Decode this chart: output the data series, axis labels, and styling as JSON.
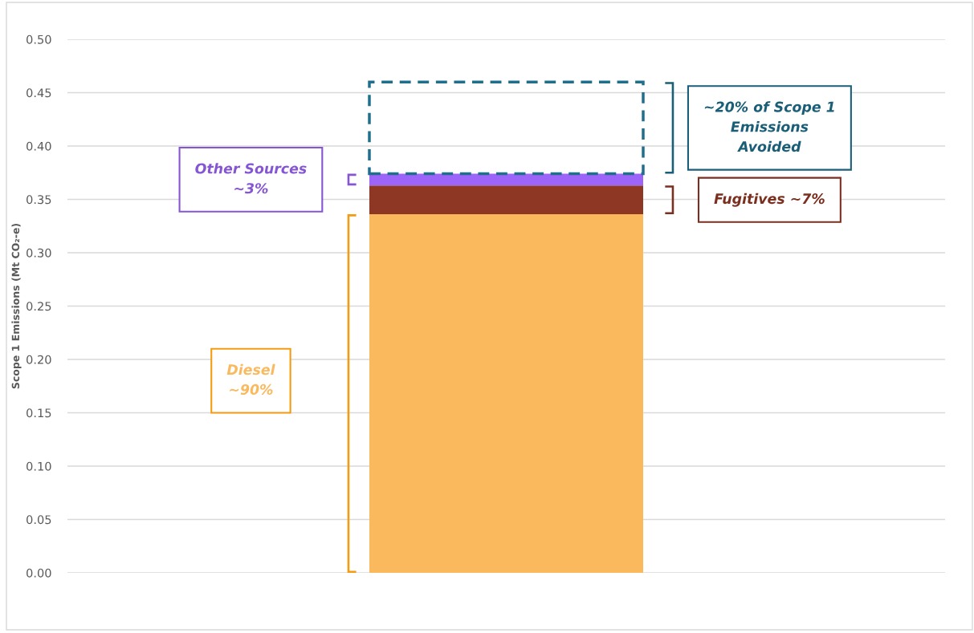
{
  "chart_data": {
    "type": "bar",
    "stacked": true,
    "categories": [
      null
    ],
    "ylabel": "Scope 1 Emissions (Mt CO₂-e)",
    "series": [
      {
        "name": "Diesel\n~90%",
        "color": "#fbb95e",
        "values": [
          0.336
        ]
      },
      {
        "name": "Fugitives ~7%",
        "color": "#8f3725",
        "values": [
          0.027
        ]
      },
      {
        "name": "Other Sources\n~3%",
        "color": "#9d64fa",
        "values": [
          0.011
        ]
      },
      {
        "name": "~20% of Scope 1\nEmissions\nAvoided",
        "color": "#1f6e8c",
        "values": [
          0.086
        ],
        "line_style": "dashed"
      }
    ],
    "ylim": [
      0,
      0.5
    ],
    "yticks": [
      {
        "value": 0,
        "label": "0.00"
      },
      {
        "value": 0.05,
        "label": "0.05"
      },
      {
        "value": 0.1,
        "label": "0.10"
      },
      {
        "value": 0.15,
        "label": "0.15"
      },
      {
        "value": 0.2,
        "label": "0.20"
      },
      {
        "value": 0.25,
        "label": "0.25"
      },
      {
        "value": 0.3,
        "label": "0.30"
      },
      {
        "value": 0.35,
        "label": "0.35"
      },
      {
        "value": 0.4,
        "label": "0.40"
      },
      {
        "value": 0.45,
        "label": "0.45"
      },
      {
        "value": 0.5,
        "label": "0.50"
      }
    ],
    "grid": "y",
    "tick_labels": "y"
  }
}
